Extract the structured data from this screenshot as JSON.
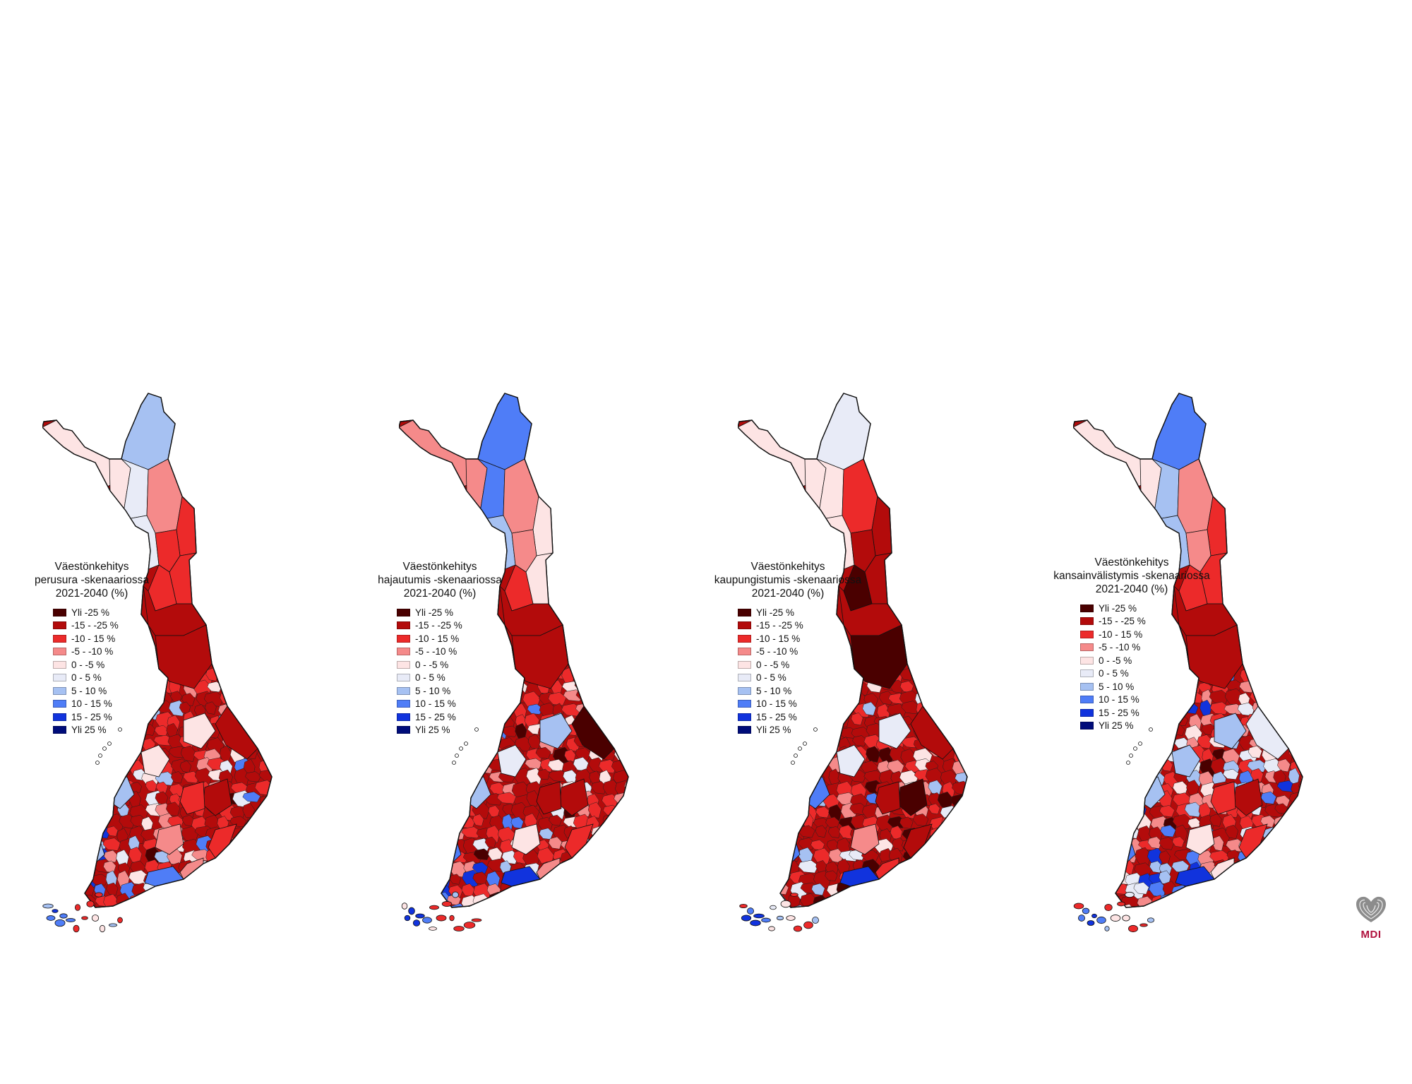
{
  "colors": {
    "c0": "#4a0000",
    "c1": "#b30b0b",
    "c2": "#ec2a2a",
    "c3": "#f58a8a",
    "c4": "#fde4e4",
    "c5": "#e8ebf7",
    "c6": "#a6c1f2",
    "c7": "#4f7df7",
    "c8": "#1133dd",
    "c9": "#000c7a"
  },
  "legend_entries": [
    "Yli -25 %",
    "-15 - -25 %",
    "-10 - 15 %",
    "-5 - -10 %",
    "0 - -5 %",
    "0 - 5 %",
    "5 - 10 %",
    "10 - 15 %",
    "15 - 25 %",
    "Yli 25 %"
  ],
  "maps": [
    {
      "title_line1": "Väestönkehitys",
      "title_line2": "perusura -skenaariossa",
      "title_line3": "2021-2040 (%)",
      "regions": {
        "enontekio": 4,
        "utsjoki_inari": 6,
        "north_west": 4,
        "kittila": 5,
        "sodankyla": 3,
        "savukoski": 2,
        "rovaniemi": 5,
        "kemijarvi": 2,
        "salla": 2,
        "posio": 2,
        "tornio": 1,
        "kemi": 2,
        "oulu": 6,
        "kuusamo": 1,
        "kainuu": 1,
        "north_ostro": 1,
        "kokkola": 4,
        "vaasa": 3,
        "kuopio": 4,
        "jyvaskyla": 4,
        "joensuu": 1,
        "tampere": 6,
        "pori": 2,
        "turku": 6,
        "helsinki": 7,
        "lahti": 3,
        "savonlinna": 1,
        "lappeenranta": 2,
        "kotka": 3,
        "mikkeli": 2,
        "seinajoki": 2
      },
      "base_color": 1
    },
    {
      "title_line1": "Väestönkehitys",
      "title_line2": "hajautumis -skenaariossa",
      "title_line3": "2021-2040 (%)",
      "regions": {
        "enontekio": 3,
        "utsjoki_inari": 7,
        "north_west": 3,
        "kittila": 7,
        "sodankyla": 3,
        "savukoski": 4,
        "rovaniemi": 6,
        "kemijarvi": 3,
        "salla": 4,
        "posio": 2,
        "tornio": 2,
        "kemi": 3,
        "oulu": 7,
        "kuusamo": 1,
        "kainuu": 1,
        "north_ostro": 1,
        "kokkola": 3,
        "vaasa": 3,
        "kuopio": 6,
        "jyvaskyla": 5,
        "joensuu": 0,
        "tampere": 6,
        "pori": 2,
        "turku": 7,
        "helsinki": 8,
        "lahti": 4,
        "savonlinna": 1,
        "lappeenranta": 2,
        "kotka": 3,
        "mikkeli": 1,
        "seinajoki": 3
      },
      "base_color": 1
    },
    {
      "title_line1": "Väestönkehitys",
      "title_line2": "kaupungistumis -skenaariossa",
      "title_line3": "2021-2040 (%)",
      "regions": {
        "enontekio": 4,
        "utsjoki_inari": 5,
        "north_west": 4,
        "kittila": 4,
        "sodankyla": 2,
        "savukoski": 1,
        "rovaniemi": 4,
        "kemijarvi": 1,
        "salla": 1,
        "posio": 0,
        "tornio": 1,
        "kemi": 1,
        "oulu": 6,
        "kuusamo": 1,
        "kainuu": 0,
        "north_ostro": 1,
        "kokkola": 4,
        "vaasa": 3,
        "kuopio": 5,
        "jyvaskyla": 5,
        "joensuu": 1,
        "tampere": 7,
        "pori": 1,
        "turku": 7,
        "helsinki": 8,
        "lahti": 3,
        "savonlinna": 0,
        "lappeenranta": 1,
        "kotka": 2,
        "mikkeli": 1,
        "seinajoki": 1
      },
      "base_color": 1
    },
    {
      "title_line1": "Väestönkehitys",
      "title_line2": "kansainvälistymis -skenaariossa",
      "title_line3": "2021-2040 (%)",
      "regions": {
        "enontekio": 4,
        "utsjoki_inari": 7,
        "north_west": 4,
        "kittila": 6,
        "sodankyla": 3,
        "savukoski": 2,
        "rovaniemi": 6,
        "kemijarvi": 3,
        "salla": 2,
        "posio": 2,
        "tornio": 2,
        "kemi": 3,
        "oulu": 7,
        "kuusamo": 1,
        "kainuu": 1,
        "north_ostro": 1,
        "kokkola": 4,
        "vaasa": 4,
        "kuopio": 6,
        "jyvaskyla": 6,
        "joensuu": 5,
        "tampere": 6,
        "pori": 3,
        "turku": 7,
        "helsinki": 8,
        "lahti": 4,
        "savonlinna": 1,
        "lappeenranta": 2,
        "kotka": 4,
        "mikkeli": 2,
        "seinajoki": 3
      },
      "base_color": 1
    }
  ],
  "logo": {
    "text": "MDI"
  }
}
